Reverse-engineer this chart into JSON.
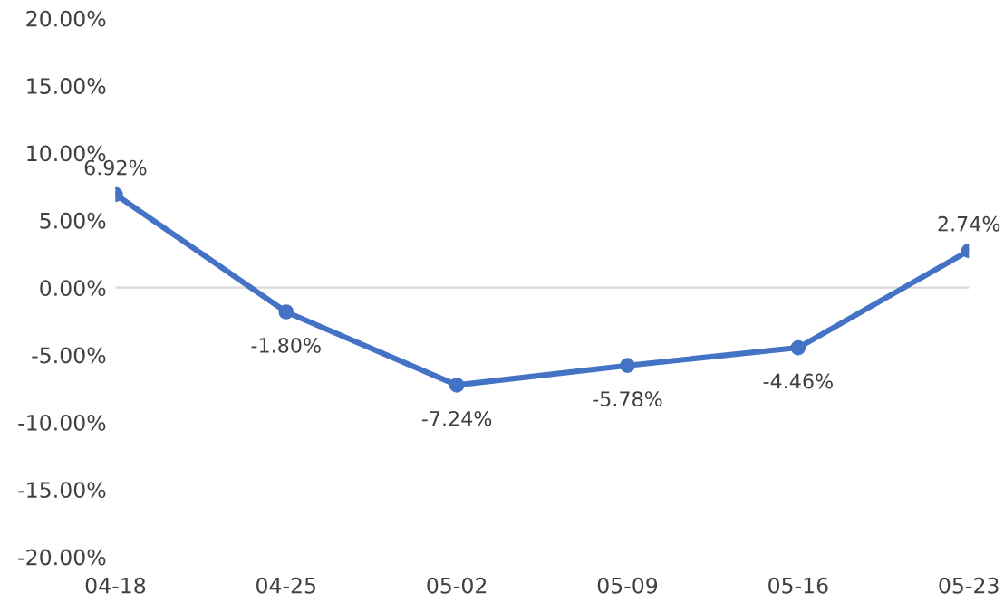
{
  "chart_data": {
    "type": "line",
    "categories": [
      "04-18",
      "04-25",
      "05-02",
      "05-09",
      "05-16",
      "05-23"
    ],
    "series": [
      {
        "color": "#4472c4",
        "values": [
          6.92,
          -1.8,
          -7.24,
          -5.78,
          -4.46,
          2.74
        ],
        "value_labels": [
          "6.92%",
          "-1.80%",
          "-7.24%",
          "-5.78%",
          "-4.46%",
          "2.74%"
        ]
      }
    ],
    "ylim": [
      -20,
      20
    ],
    "yticks": [
      {
        "value": -20,
        "label": "-20.00%"
      },
      {
        "value": -15,
        "label": "-15.00%"
      },
      {
        "value": -10,
        "label": "-10.00%"
      },
      {
        "value": -5,
        "label": "-5.00%"
      },
      {
        "value": 0,
        "label": "0.00%"
      },
      {
        "value": 5,
        "label": "5.00%"
      },
      {
        "value": 10,
        "label": "10.00%"
      },
      {
        "value": 15,
        "label": "15.00%"
      },
      {
        "value": 20,
        "label": "20.00%"
      }
    ],
    "ref_lines": [
      {
        "axis": "y",
        "value": 0,
        "color": "#d9d9d9"
      }
    ],
    "marker": "circle",
    "line_style": "solid",
    "grid": false,
    "legend": false
  }
}
